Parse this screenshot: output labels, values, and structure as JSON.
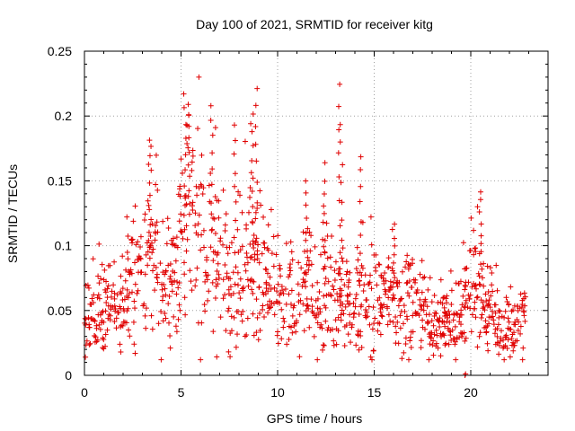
{
  "chart_data": {
    "type": "scatter",
    "title": "Day 100 of 2021, SRMTID for receiver kitg",
    "xlabel": "GPS time / hours",
    "ylabel": "SRMTID / TECUs",
    "xlim": [
      0,
      24
    ],
    "ylim": [
      0,
      0.25
    ],
    "xticks": [
      0,
      5,
      10,
      15,
      20
    ],
    "xtick_labels": [
      "0",
      "5",
      "10",
      "15",
      "20"
    ],
    "yticks": [
      0,
      0.05,
      0.1,
      0.15,
      0.2,
      0.25
    ],
    "ytick_labels": [
      "0",
      "0.05",
      "0.1",
      "0.15",
      "0.2",
      "0.25"
    ],
    "grid": true,
    "marker": "+",
    "color": "#e00000",
    "series": [
      {
        "name": "SRMTID",
        "trend": [
          {
            "x": 0.0,
            "y": 0.04
          },
          {
            "x": 0.5,
            "y": 0.045
          },
          {
            "x": 1.0,
            "y": 0.055
          },
          {
            "x": 1.5,
            "y": 0.045
          },
          {
            "x": 2.0,
            "y": 0.05
          },
          {
            "x": 2.5,
            "y": 0.08
          },
          {
            "x": 3.0,
            "y": 0.07
          },
          {
            "x": 3.5,
            "y": 0.095
          },
          {
            "x": 4.0,
            "y": 0.075
          },
          {
            "x": 4.5,
            "y": 0.065
          },
          {
            "x": 5.0,
            "y": 0.1
          },
          {
            "x": 5.5,
            "y": 0.13
          },
          {
            "x": 6.0,
            "y": 0.11
          },
          {
            "x": 6.5,
            "y": 0.1
          },
          {
            "x": 7.0,
            "y": 0.09
          },
          {
            "x": 7.5,
            "y": 0.07
          },
          {
            "x": 8.0,
            "y": 0.09
          },
          {
            "x": 8.5,
            "y": 0.095
          },
          {
            "x": 9.0,
            "y": 0.09
          },
          {
            "x": 9.5,
            "y": 0.065
          },
          {
            "x": 10.0,
            "y": 0.055
          },
          {
            "x": 10.5,
            "y": 0.05
          },
          {
            "x": 11.0,
            "y": 0.05
          },
          {
            "x": 11.5,
            "y": 0.07
          },
          {
            "x": 12.0,
            "y": 0.06
          },
          {
            "x": 12.5,
            "y": 0.06
          },
          {
            "x": 13.0,
            "y": 0.06
          },
          {
            "x": 13.5,
            "y": 0.06
          },
          {
            "x": 14.0,
            "y": 0.05
          },
          {
            "x": 14.5,
            "y": 0.06
          },
          {
            "x": 15.0,
            "y": 0.06
          },
          {
            "x": 15.5,
            "y": 0.065
          },
          {
            "x": 16.0,
            "y": 0.06
          },
          {
            "x": 16.5,
            "y": 0.055
          },
          {
            "x": 17.0,
            "y": 0.055
          },
          {
            "x": 17.5,
            "y": 0.045
          },
          {
            "x": 18.0,
            "y": 0.04
          },
          {
            "x": 18.5,
            "y": 0.04
          },
          {
            "x": 19.0,
            "y": 0.04
          },
          {
            "x": 19.5,
            "y": 0.045
          },
          {
            "x": 20.0,
            "y": 0.07
          },
          {
            "x": 20.5,
            "y": 0.06
          },
          {
            "x": 21.0,
            "y": 0.055
          },
          {
            "x": 21.5,
            "y": 0.035
          },
          {
            "x": 22.0,
            "y": 0.035
          },
          {
            "x": 22.5,
            "y": 0.04
          },
          {
            "x": 22.9,
            "y": 0.035
          }
        ],
        "spikes": [
          {
            "x": 3.4,
            "y": 0.178
          },
          {
            "x": 5.2,
            "y": 0.217
          },
          {
            "x": 5.4,
            "y": 0.21
          },
          {
            "x": 6.6,
            "y": 0.208
          },
          {
            "x": 7.8,
            "y": 0.195
          },
          {
            "x": 8.9,
            "y": 0.223
          },
          {
            "x": 8.7,
            "y": 0.2
          },
          {
            "x": 11.5,
            "y": 0.148
          },
          {
            "x": 12.4,
            "y": 0.163
          },
          {
            "x": 13.2,
            "y": 0.225
          },
          {
            "x": 13.3,
            "y": 0.193
          },
          {
            "x": 14.3,
            "y": 0.17
          },
          {
            "x": 20.5,
            "y": 0.143
          },
          {
            "x": 16.0,
            "y": 0.117
          },
          {
            "x": 19.7,
            "y": 0.0
          }
        ]
      }
    ]
  }
}
